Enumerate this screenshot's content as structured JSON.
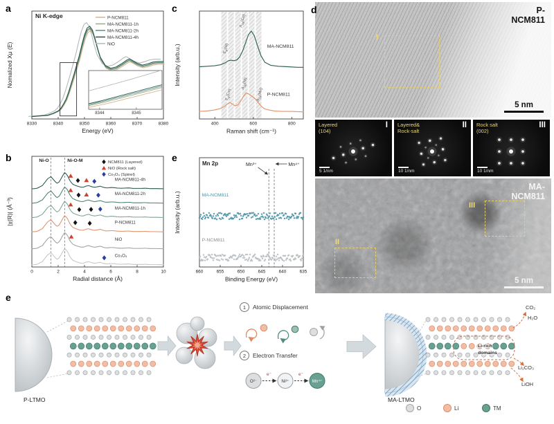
{
  "figure": {
    "panels": {
      "a": "a",
      "b": "b",
      "c": "c",
      "d": "d",
      "e1": "e",
      "e2": "e"
    }
  },
  "chart_data": [
    {
      "id": "a",
      "type": "line",
      "title": "Ni K-edge",
      "xlabel": "Energy (eV)",
      "ylabel": "Nomalized Xμ (E)",
      "xlim": [
        8330,
        8380
      ],
      "xticks": [
        8330,
        8340,
        8350,
        8360,
        8370,
        8380
      ],
      "base_x": [
        8330,
        8333,
        8336,
        8338,
        8340,
        8341,
        8342,
        8343,
        8344,
        8345,
        8346,
        8347,
        8348,
        8349,
        8350,
        8351,
        8352,
        8353,
        8354,
        8355,
        8356,
        8358,
        8360,
        8362,
        8364,
        8366,
        8367,
        8368,
        8370,
        8372,
        8374,
        8376,
        8378,
        8380
      ],
      "base_y": [
        0.04,
        0.05,
        0.06,
        0.09,
        0.13,
        0.17,
        0.24,
        0.32,
        0.44,
        0.58,
        0.72,
        0.87,
        1.02,
        1.2,
        1.36,
        1.47,
        1.5,
        1.44,
        1.3,
        1.14,
        1.0,
        0.86,
        0.82,
        0.84,
        0.89,
        0.95,
        0.97,
        0.95,
        0.9,
        0.87,
        0.89,
        0.92,
        0.93,
        0.93
      ],
      "series": [
        {
          "name": "NiO",
          "color": "#b4b8b9",
          "dx": -1.2,
          "sy": 1.06
        },
        {
          "name": "P-NCM811",
          "color": "#d9b38c",
          "dx": 0.3,
          "sy": 0.97
        },
        {
          "name": "MA-NCM811-1h",
          "color": "#9aa98f",
          "dx": 0.15,
          "sy": 0.99
        },
        {
          "name": "MA-NCM811-2h",
          "color": "#5b8f7a",
          "dx": 0.05,
          "sy": 1.0
        },
        {
          "name": "MA-NCM811-4h",
          "color": "#24564a",
          "dx": 0.0,
          "sy": 1.02
        }
      ],
      "legend": [
        {
          "label": "P-NCM811",
          "color": "#d9b38c"
        },
        {
          "label": "MA-NCM811-1h",
          "color": "#9aa98f"
        },
        {
          "label": "MA-NCM811-2h",
          "color": "#5b8f7a"
        },
        {
          "label": "MA-NCM811-4h",
          "color": "#24564a"
        },
        {
          "label": "NiO",
          "color": "#b4b8b9"
        }
      ],
      "zoom_box": {
        "x0": 8340.7,
        "x1": 8347.0,
        "y0": 0.05,
        "y1": 0.93
      },
      "inset": {
        "xlim": [
          8343.7,
          8345.7
        ],
        "ylim": [
          0.33,
          0.9
        ],
        "ticks": [
          8344,
          8345
        ]
      }
    },
    {
      "id": "b",
      "type": "line",
      "xlabel": "Radial distance (Å)",
      "ylabel": "|χ(R)| (Å⁻³)",
      "xlim": [
        0,
        10
      ],
      "xticks": [
        0,
        2,
        4,
        6,
        8,
        10
      ],
      "vlines": [
        {
          "x": 1.45,
          "label": "Ni-O"
        },
        {
          "x": 2.5,
          "label": "Ni-O-M"
        }
      ],
      "base_x": [
        0,
        0.4,
        0.8,
        1.0,
        1.2,
        1.45,
        1.7,
        1.9,
        2.1,
        2.3,
        2.5,
        2.7,
        2.9,
        3.1,
        3.4,
        3.7,
        3.9,
        4.1,
        4.3,
        4.6,
        4.8,
        5.0,
        5.2,
        5.5,
        5.7,
        6.0,
        6.2,
        6.5,
        6.8,
        7.1,
        7.4,
        7.7,
        8.0,
        8.3,
        8.6,
        9.0,
        9.4,
        10.0
      ],
      "base_y": [
        0.02,
        0.06,
        0.22,
        0.42,
        0.62,
        0.75,
        0.52,
        0.35,
        0.45,
        0.75,
        1.0,
        0.82,
        0.5,
        0.3,
        0.2,
        0.13,
        0.12,
        0.18,
        0.22,
        0.14,
        0.12,
        0.15,
        0.18,
        0.1,
        0.08,
        0.1,
        0.1,
        0.07,
        0.06,
        0.07,
        0.08,
        0.05,
        0.05,
        0.05,
        0.06,
        0.04,
        0.04,
        0.03
      ],
      "series": [
        {
          "name": "MA-NCM811-4h",
          "color": "#24564a",
          "offset": 4.6
        },
        {
          "name": "MA-NCM811-2h",
          "color": "#45836c",
          "offset": 3.75
        },
        {
          "name": "MA-NCM811-1h",
          "color": "#7ca393",
          "offset": 2.9
        },
        {
          "name": "P-NCM811",
          "color": "#e0926a",
          "offset": 2.05
        },
        {
          "name": "NiO",
          "color": "#9aa0a3",
          "offset": 1.05
        },
        {
          "name": "Co₃O₄",
          "color": "#c2c6c8",
          "offset": 0.1
        }
      ],
      "legend": [
        {
          "label": "NCM811 (Layered)",
          "marker": "diamond",
          "color": "#141414"
        },
        {
          "label": "NiO (Rock salt)",
          "marker": "triangle",
          "color": "#cf4231"
        },
        {
          "label": "Co₃O₄ (Spinel)",
          "marker": "diamond",
          "color": "#2b3f9e"
        }
      ],
      "markers": [
        {
          "s": 0,
          "x": 2.95,
          "m": "t"
        },
        {
          "s": 0,
          "x": 3.5,
          "m": "dk"
        },
        {
          "s": 0,
          "x": 4.15,
          "m": "t"
        },
        {
          "s": 0,
          "x": 4.75,
          "m": "db"
        },
        {
          "s": 1,
          "x": 2.95,
          "m": "t"
        },
        {
          "s": 1,
          "x": 3.55,
          "m": "dk"
        },
        {
          "s": 1,
          "x": 4.15,
          "m": "t"
        },
        {
          "s": 1,
          "x": 5.05,
          "m": "db"
        },
        {
          "s": 2,
          "x": 2.95,
          "m": "t"
        },
        {
          "s": 2,
          "x": 3.6,
          "m": "dk"
        },
        {
          "s": 2,
          "x": 4.5,
          "m": "dk"
        },
        {
          "s": 2,
          "x": 5.2,
          "m": "db"
        },
        {
          "s": 3,
          "x": 3.3,
          "m": "dk"
        },
        {
          "s": 3,
          "x": 4.4,
          "m": "dk"
        },
        {
          "s": 4,
          "x": 3.0,
          "m": "t"
        },
        {
          "s": 5,
          "x": 5.5,
          "m": "db"
        }
      ]
    },
    {
      "id": "c",
      "type": "line",
      "xlabel": "Raman shift (cm⁻¹)",
      "ylabel": "Intensity (arb.u.)",
      "xlim": [
        320,
        860
      ],
      "xticks": [
        400,
        600,
        800
      ],
      "bands": [
        448,
        484,
        520,
        556,
        592,
        628
      ],
      "series": [
        {
          "name": "MA-NCM811",
          "color": "#2e5f50",
          "offset": 1.0,
          "x": [
            320,
            360,
            400,
            430,
            455,
            470,
            485,
            500,
            515,
            530,
            545,
            560,
            575,
            590,
            605,
            620,
            640,
            660,
            690,
            730,
            780,
            830,
            860
          ],
          "y": [
            0.04,
            0.05,
            0.06,
            0.08,
            0.12,
            0.16,
            0.17,
            0.16,
            0.18,
            0.24,
            0.36,
            0.52,
            0.68,
            0.75,
            0.66,
            0.48,
            0.26,
            0.13,
            0.07,
            0.05,
            0.04,
            0.03,
            0.03
          ]
        },
        {
          "name": "P-NCM811",
          "color": "#e0926a",
          "offset": 0.12,
          "x": [
            320,
            360,
            400,
            430,
            450,
            465,
            478,
            490,
            505,
            520,
            535,
            550,
            562,
            575,
            590,
            605,
            618,
            632,
            645,
            660,
            680,
            710,
            750,
            800,
            860
          ],
          "y": [
            0.03,
            0.04,
            0.06,
            0.09,
            0.13,
            0.18,
            0.21,
            0.18,
            0.14,
            0.16,
            0.24,
            0.34,
            0.4,
            0.38,
            0.34,
            0.3,
            0.24,
            0.18,
            0.12,
            0.08,
            0.06,
            0.04,
            0.03,
            0.03,
            0.02
          ]
        }
      ],
      "annotations": [
        {
          "s": 0,
          "x": 462,
          "dy": 0.4,
          "pre": "E",
          "sub": "g",
          "post": "(Ni)"
        },
        {
          "s": 0,
          "x": 548,
          "dy": 0.95,
          "pre": "A",
          "sub": "1g",
          "post": "(Co)"
        },
        {
          "s": 1,
          "x": 474,
          "dy": 0.36,
          "pre": "E",
          "sub": "g",
          "post": "(Co)"
        },
        {
          "s": 1,
          "x": 558,
          "dy": 0.58,
          "pre": "A",
          "sub": "1g",
          "post": "(Ni)"
        },
        {
          "s": 1,
          "x": 638,
          "dy": 0.36,
          "pre": "A",
          "sub": "1g",
          "post": "(Mn)"
        }
      ]
    },
    {
      "id": "xps",
      "type": "scatter",
      "title": "Mn 2p",
      "xlabel": "Binding Energy (eV)",
      "ylabel": "Intensity (arb.u.)",
      "xlim": [
        660,
        635
      ],
      "xticks": [
        660,
        655,
        650,
        645,
        640,
        635
      ],
      "vlines": [
        643.3,
        642.0
      ],
      "ion_labels": [
        "Mn³⁺",
        "Mn⁴⁺"
      ],
      "noise": 0.035,
      "series": [
        {
          "name": "MA-NCM811",
          "color": "#4a93a6",
          "offset": 0.42,
          "label_dy": 0.33,
          "x": [
            660,
            658,
            656,
            655,
            654,
            653,
            652,
            651,
            650,
            649,
            648,
            647,
            646,
            645,
            644,
            643.2,
            642.5,
            641.5,
            640.5,
            639.5,
            638.5,
            637.5,
            636.5,
            635
          ],
          "y": [
            0.12,
            0.14,
            0.19,
            0.23,
            0.26,
            0.25,
            0.22,
            0.19,
            0.17,
            0.17,
            0.19,
            0.23,
            0.29,
            0.37,
            0.45,
            0.5,
            0.48,
            0.4,
            0.3,
            0.22,
            0.16,
            0.12,
            0.1,
            0.09
          ]
        },
        {
          "name": "P-NCM811",
          "color": "#b9bdbf",
          "offset": 0.0,
          "label_dy": 0.27,
          "x": [
            660,
            658,
            656,
            655,
            654,
            653,
            652,
            651,
            650,
            649,
            648,
            647,
            646,
            645,
            644,
            643,
            642.2,
            641.5,
            640.5,
            639.5,
            638.5,
            637.5,
            636.5,
            635
          ],
          "y": [
            0.1,
            0.11,
            0.14,
            0.17,
            0.2,
            0.21,
            0.19,
            0.16,
            0.14,
            0.14,
            0.15,
            0.18,
            0.23,
            0.3,
            0.38,
            0.45,
            0.47,
            0.44,
            0.34,
            0.24,
            0.17,
            0.12,
            0.1,
            0.08
          ]
        }
      ]
    }
  ],
  "panel_d": {
    "top_label_lines": [
      "P-",
      "NCM811"
    ],
    "bottom_label_lines": [
      "MA-",
      "NCM811"
    ],
    "top_scale": "5 nm",
    "bottom_scale": "5 nm",
    "rois": {
      "i": "I",
      "ii": "II",
      "iii": "III"
    },
    "ffts": [
      {
        "line1": "Layered",
        "line2": "(104)",
        "roman": "I",
        "scale": "5 1/nm"
      },
      {
        "line1": "Layered&",
        "line2": "Rock-salt",
        "roman": "II",
        "scale": "10 1/nm"
      },
      {
        "line1": "Rock salt",
        "line2": "(002)",
        "roman": "III",
        "scale": "10 1/nm"
      }
    ]
  },
  "schematic": {
    "p_label": "P-LTMO",
    "ma_label": "MA-LTMO",
    "step1_num": "1",
    "step1": "Atomic Displacement",
    "step2_num": "2",
    "step2": "Electron Transfer",
    "species": {
      "o": "O²⁻",
      "ni": "Ni³⁺",
      "mn": "Mn⁴⁺",
      "e1": "e⁻",
      "e2": "e⁻"
    },
    "products": {
      "co2": "CO₂",
      "h2o": "H₂O",
      "li2co3": "Li₂CO₃",
      "lioh": "LiOH"
    },
    "li_rich_1": "Li-rich",
    "li_rich_2": "domains",
    "legend": [
      {
        "label": "O"
      },
      {
        "label": "Li"
      },
      {
        "label": "TM"
      }
    ]
  }
}
